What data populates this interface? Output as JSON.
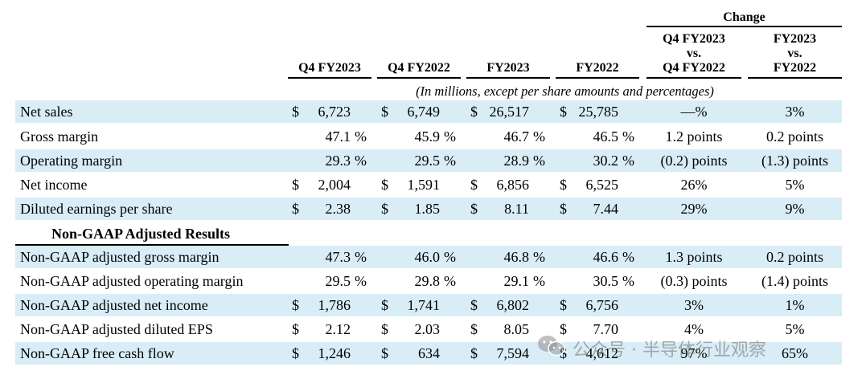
{
  "header": {
    "change_group": "Change",
    "columns": [
      "Q4 FY2023",
      "Q4 FY2022",
      "FY2023",
      "FY2022"
    ],
    "change_q": [
      "Q4 FY2023",
      "vs.",
      "Q4 FY2022"
    ],
    "change_fy": [
      "FY2023",
      "vs.",
      "FY2022"
    ]
  },
  "units_note": "(In millions, except per share amounts and percentages)",
  "section_title": "Non-GAAP Adjusted Results",
  "rows": [
    {
      "label": "Net sales",
      "v1": "6,723",
      "v2": "6,749",
      "v3": "26,517",
      "v4": "25,785",
      "pct": [
        "",
        "",
        "",
        ""
      ],
      "dollar": [
        "$",
        "$",
        "$",
        "$"
      ],
      "c1": "—%",
      "c2": "3%"
    },
    {
      "label": "Gross margin",
      "v1": "47.1",
      "v2": "45.9",
      "v3": "46.7",
      "v4": "46.5",
      "pct": [
        "%",
        "%",
        "%",
        "%"
      ],
      "dollar": [
        "",
        "",
        "",
        ""
      ],
      "c1": "1.2 points",
      "c2": "0.2 points"
    },
    {
      "label": "Operating margin",
      "v1": "29.3",
      "v2": "29.5",
      "v3": "28.9",
      "v4": "30.2",
      "pct": [
        "%",
        "%",
        "%",
        "%"
      ],
      "dollar": [
        "",
        "",
        "",
        ""
      ],
      "c1": "(0.2) points",
      "c2": "(1.3) points"
    },
    {
      "label": "Net income",
      "v1": "2,004",
      "v2": "1,591",
      "v3": "6,856",
      "v4": "6,525",
      "pct": [
        "",
        "",
        "",
        ""
      ],
      "dollar": [
        "$",
        "$",
        "$",
        "$"
      ],
      "c1": "26%",
      "c2": "5%"
    },
    {
      "label": "Diluted earnings per share",
      "v1": "2.38",
      "v2": "1.85",
      "v3": "8.11",
      "v4": "7.44",
      "pct": [
        "",
        "",
        "",
        ""
      ],
      "dollar": [
        "$",
        "$",
        "$",
        "$"
      ],
      "c1": "29%",
      "c2": "9%"
    },
    {
      "label": "Non-GAAP adjusted gross margin",
      "v1": "47.3",
      "v2": "46.0",
      "v3": "46.8",
      "v4": "46.6",
      "pct": [
        "%",
        "%",
        "%",
        "%"
      ],
      "dollar": [
        "",
        "",
        "",
        ""
      ],
      "c1": "1.3 points",
      "c2": "0.2 points"
    },
    {
      "label": "Non-GAAP adjusted operating margin",
      "v1": "29.5",
      "v2": "29.8",
      "v3": "29.1",
      "v4": "30.5",
      "pct": [
        "%",
        "%",
        "%",
        "%"
      ],
      "dollar": [
        "",
        "",
        "",
        ""
      ],
      "c1": "(0.3) points",
      "c2": "(1.4) points"
    },
    {
      "label": "Non-GAAP adjusted net income",
      "v1": "1,786",
      "v2": "1,741",
      "v3": "6,802",
      "v4": "6,756",
      "pct": [
        "",
        "",
        "",
        ""
      ],
      "dollar": [
        "$",
        "$",
        "$",
        "$"
      ],
      "c1": "3%",
      "c2": "1%"
    },
    {
      "label": "Non-GAAP adjusted diluted EPS",
      "v1": "2.12",
      "v2": "2.03",
      "v3": "8.05",
      "v4": "7.70",
      "pct": [
        "",
        "",
        "",
        ""
      ],
      "dollar": [
        "$",
        "$",
        "$",
        "$"
      ],
      "c1": "4%",
      "c2": "5%"
    },
    {
      "label": "Non-GAAP free cash flow",
      "v1": "1,246",
      "v2": "634",
      "v3": "7,594",
      "v4": "4,612",
      "pct": [
        "",
        "",
        "",
        ""
      ],
      "dollar": [
        "$",
        "$",
        "$",
        "$"
      ],
      "c1": "97%",
      "c2": "65%"
    }
  ],
  "watermark": {
    "text": "公众号 · 半导体行业观察",
    "icon": "wechat-icon"
  },
  "colors": {
    "row_shade": "#d9edf7",
    "text": "#000000"
  }
}
